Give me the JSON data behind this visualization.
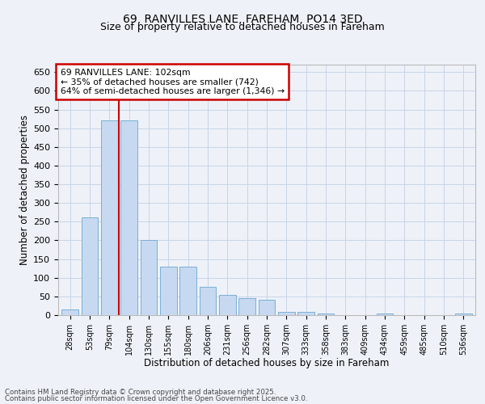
{
  "title1": "69, RANVILLES LANE, FAREHAM, PO14 3ED",
  "title2": "Size of property relative to detached houses in Fareham",
  "xlabel": "Distribution of detached houses by size in Fareham",
  "ylabel": "Number of detached properties",
  "categories": [
    "28sqm",
    "53sqm",
    "79sqm",
    "104sqm",
    "130sqm",
    "155sqm",
    "180sqm",
    "206sqm",
    "231sqm",
    "256sqm",
    "282sqm",
    "307sqm",
    "333sqm",
    "358sqm",
    "383sqm",
    "409sqm",
    "434sqm",
    "459sqm",
    "485sqm",
    "510sqm",
    "536sqm"
  ],
  "values": [
    15,
    262,
    520,
    520,
    200,
    130,
    130,
    75,
    55,
    45,
    40,
    8,
    8,
    5,
    1,
    1,
    5,
    1,
    1,
    1,
    5
  ],
  "bar_color": "#c6d9f1",
  "bar_edge_color": "#7bafd4",
  "grid_color": "#c8d4e8",
  "vline_x": 2.5,
  "vline_color": "#cc0000",
  "annotation_text": "69 RANVILLES LANE: 102sqm\n← 35% of detached houses are smaller (742)\n64% of semi-detached houses are larger (1,346) →",
  "annotation_box_color": "#ffffff",
  "annotation_box_edge": "#cc0000",
  "ylim": [
    0,
    670
  ],
  "yticks": [
    0,
    50,
    100,
    150,
    200,
    250,
    300,
    350,
    400,
    450,
    500,
    550,
    600,
    650
  ],
  "footer1": "Contains HM Land Registry data © Crown copyright and database right 2025.",
  "footer2": "Contains public sector information licensed under the Open Government Licence v3.0.",
  "bg_color": "#eef2f8"
}
